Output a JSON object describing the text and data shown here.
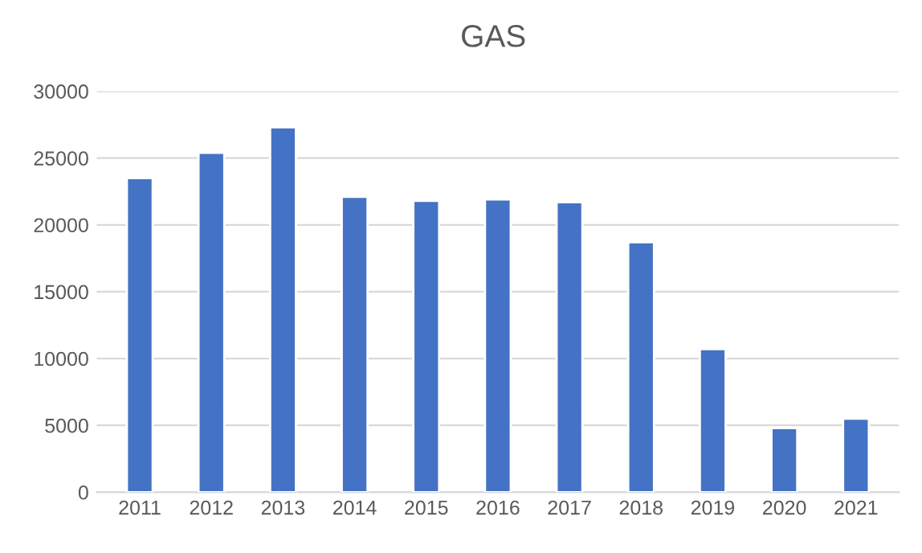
{
  "chart_data": {
    "type": "bar",
    "title": "GAS",
    "categories": [
      "2011",
      "2012",
      "2013",
      "2014",
      "2015",
      "2016",
      "2017",
      "2018",
      "2019",
      "2020",
      "2021"
    ],
    "values": [
      23500,
      25400,
      27300,
      22100,
      21800,
      21900,
      21700,
      18700,
      10700,
      4800,
      5500
    ],
    "color": "#4472c4",
    "ylim": [
      0,
      30000
    ],
    "yticks": [
      0,
      5000,
      10000,
      15000,
      20000,
      25000,
      30000
    ],
    "grid": "y"
  }
}
